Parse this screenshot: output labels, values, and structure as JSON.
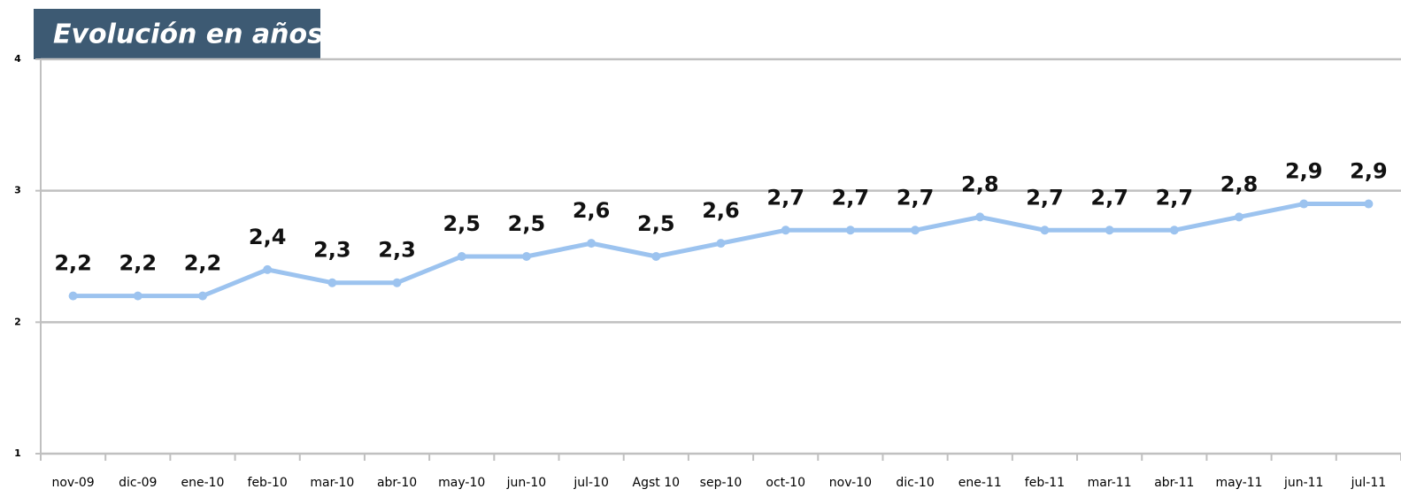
{
  "chart_data": {
    "type": "line",
    "title": "Evolución en años",
    "categories": [
      "nov-09",
      "dic-09",
      "ene-10",
      "feb-10",
      "mar-10",
      "abr-10",
      "may-10",
      "jun-10",
      "jul-10",
      "Agst 10",
      "sep-10",
      "oct-10",
      "nov-10",
      "dic-10",
      "ene-11",
      "feb-11",
      "mar-11",
      "abr-11",
      "may-11",
      "jun-11",
      "jul-11"
    ],
    "series": [
      {
        "color": "#9cc3ef",
        "values": [
          2.2,
          2.2,
          2.2,
          2.4,
          2.3,
          2.3,
          2.5,
          2.5,
          2.6,
          2.5,
          2.6,
          2.7,
          2.7,
          2.7,
          2.8,
          2.7,
          2.7,
          2.7,
          2.8,
          2.9,
          2.9
        ],
        "value_labels": [
          "2,2",
          "2,2",
          "2,2",
          "2,4",
          "2,3",
          "2,3",
          "2,5",
          "2,5",
          "2,6",
          "2,5",
          "2,6",
          "2,7",
          "2,7",
          "2,7",
          "2,8",
          "2,7",
          "2,7",
          "2,7",
          "2,8",
          "2,9",
          "2,9"
        ]
      }
    ],
    "ylim": [
      1,
      4
    ],
    "yticks": [
      1,
      2,
      3,
      4
    ],
    "grid": true
  }
}
